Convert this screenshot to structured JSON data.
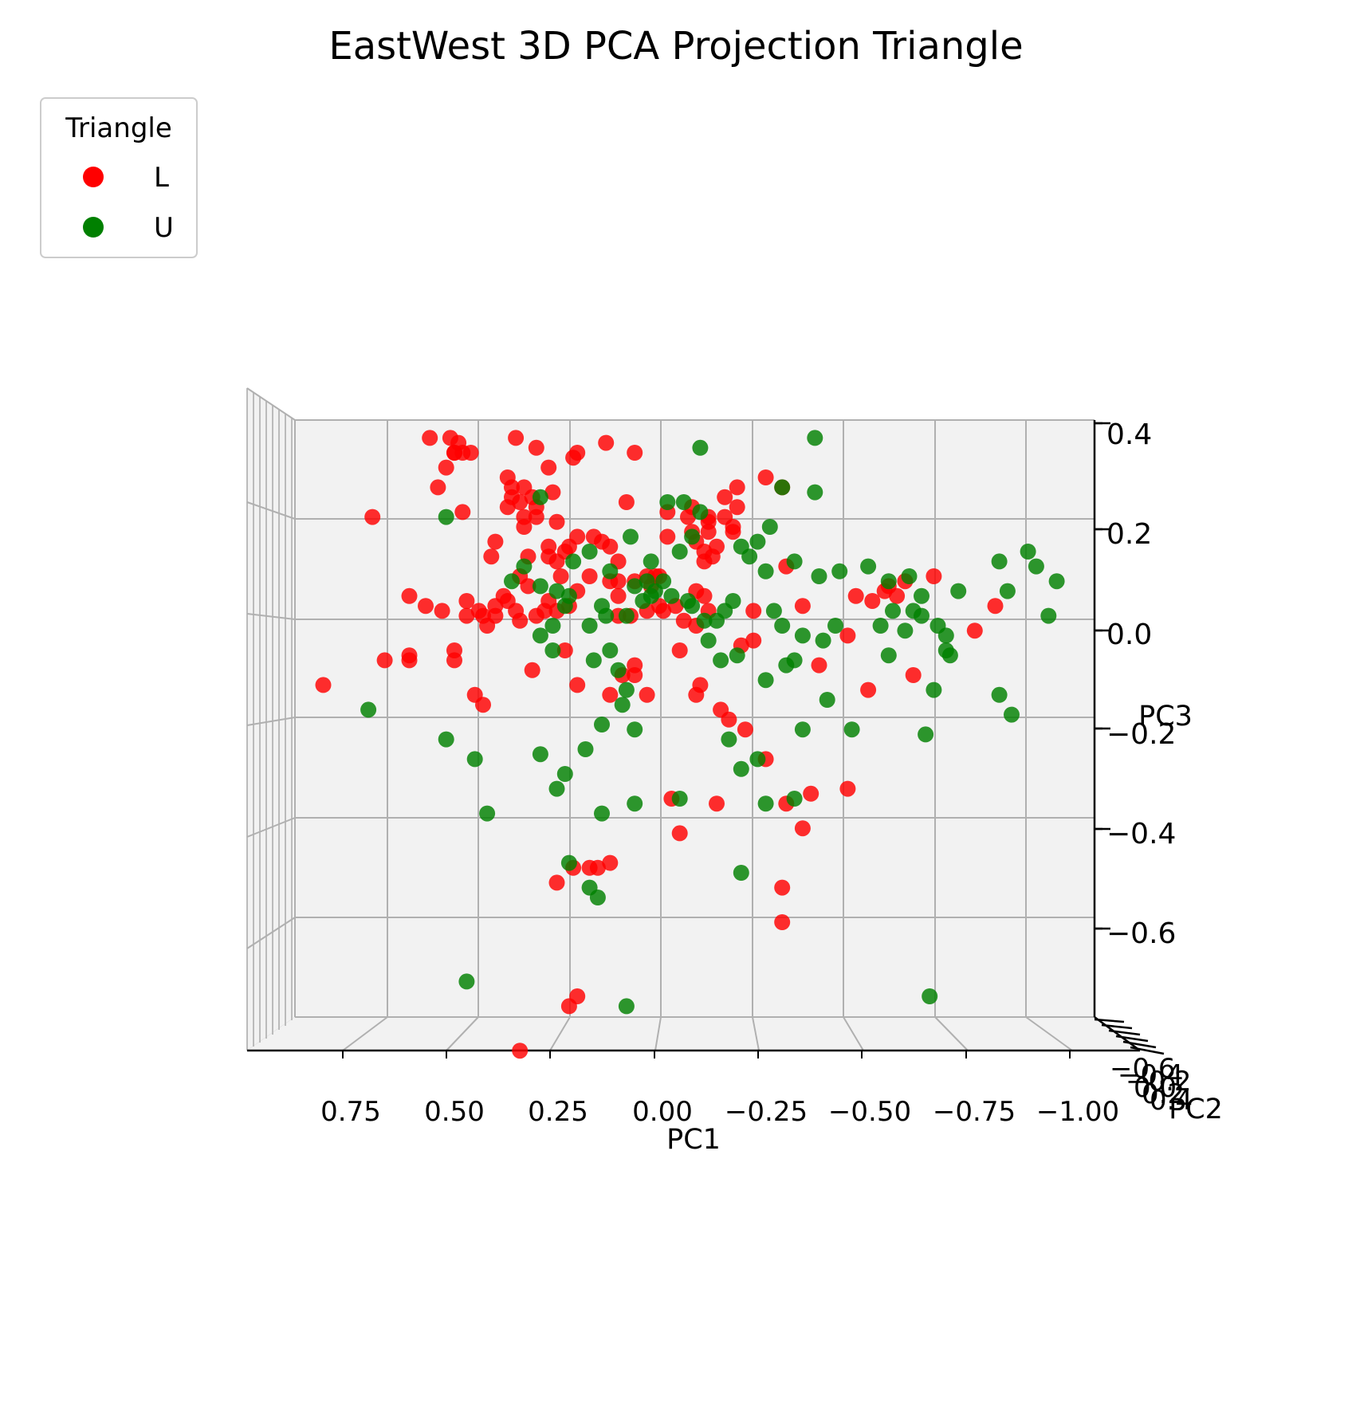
{
  "chart_data": {
    "type": "scatter",
    "projection": "3d",
    "title": "EastWest 3D PCA Projection Triangle",
    "xlabel": "PC1",
    "ylabel": "PC2",
    "zlabel": "PC3",
    "xlim": [
      0.9,
      -1.05
    ],
    "zlim": [
      -0.78,
      0.45
    ],
    "xticks": [
      "0.75",
      "0.50",
      "0.25",
      "0.00",
      "−0.25",
      "−0.50",
      "−0.75",
      "−1.00"
    ],
    "zticks": [
      "0.4",
      "0.2",
      "0.0",
      "−0.2",
      "−0.4",
      "−0.6"
    ],
    "yticks_overlapping": [
      "−0.6",
      "−0.4",
      "−0.2",
      "0.0",
      "0.2",
      "0.4"
    ],
    "grid": true,
    "pane_color": "#f2f2f2",
    "legend": {
      "title": "Triangle",
      "position": "top-left-outside",
      "entries": [
        {
          "label": "L",
          "color": "#ff0000"
        },
        {
          "label": "U",
          "color": "#008000"
        }
      ]
    },
    "series": [
      {
        "name": "L",
        "color": "#ff0000",
        "points": [
          [
            0.56,
            0.38
          ],
          [
            0.51,
            0.38
          ],
          [
            0.49,
            0.37
          ],
          [
            0.5,
            0.35
          ],
          [
            0.5,
            0.35
          ],
          [
            0.52,
            0.32
          ],
          [
            0.48,
            0.35
          ],
          [
            0.46,
            0.35
          ],
          [
            0.35,
            0.38
          ],
          [
            0.3,
            0.36
          ],
          [
            0.13,
            0.37
          ],
          [
            0.06,
            0.35
          ],
          [
            0.2,
            0.35
          ],
          [
            0.21,
            0.34
          ],
          [
            0.54,
            0.28
          ],
          [
            0.27,
            0.32
          ],
          [
            0.37,
            0.3
          ],
          [
            0.36,
            0.28
          ],
          [
            0.33,
            0.28
          ],
          [
            0.7,
            0.22
          ],
          [
            0.48,
            0.23
          ],
          [
            0.36,
            0.26
          ],
          [
            0.37,
            0.24
          ],
          [
            0.34,
            0.25
          ],
          [
            0.31,
            0.26
          ],
          [
            0.33,
            0.22
          ],
          [
            0.3,
            0.24
          ],
          [
            0.3,
            0.22
          ],
          [
            0.33,
            0.2
          ],
          [
            0.26,
            0.27
          ],
          [
            0.25,
            0.21
          ],
          [
            0.08,
            0.25
          ],
          [
            -0.02,
            0.23
          ],
          [
            -0.08,
            0.24
          ],
          [
            -0.12,
            0.22
          ],
          [
            -0.16,
            0.26
          ],
          [
            -0.19,
            0.28
          ],
          [
            -0.26,
            0.3
          ],
          [
            -0.3,
            0.28
          ],
          [
            -0.18,
            0.2
          ],
          [
            -0.19,
            0.24
          ],
          [
            -0.18,
            0.19
          ],
          [
            -0.07,
            0.22
          ],
          [
            -0.12,
            0.21
          ],
          [
            -0.16,
            0.22
          ],
          [
            -0.08,
            0.19
          ],
          [
            -0.12,
            0.19
          ],
          [
            -0.09,
            0.17
          ],
          [
            -0.14,
            0.16
          ],
          [
            -0.11,
            0.13
          ],
          [
            -0.11,
            0.15
          ],
          [
            -0.13,
            0.14
          ],
          [
            -0.02,
            0.18
          ],
          [
            0.4,
            0.17
          ],
          [
            0.41,
            0.14
          ],
          [
            0.32,
            0.14
          ],
          [
            0.27,
            0.16
          ],
          [
            0.27,
            0.14
          ],
          [
            0.25,
            0.13
          ],
          [
            0.23,
            0.15
          ],
          [
            0.22,
            0.16
          ],
          [
            0.2,
            0.18
          ],
          [
            0.16,
            0.18
          ],
          [
            0.14,
            0.17
          ],
          [
            0.12,
            0.16
          ],
          [
            0.1,
            0.13
          ],
          [
            0.1,
            0.09
          ],
          [
            0.1,
            0.06
          ],
          [
            0.06,
            0.09
          ],
          [
            0.12,
            0.09
          ],
          [
            0.03,
            0.1
          ],
          [
            0.01,
            0.1
          ],
          [
            0.0,
            0.1
          ],
          [
            0.02,
            0.08
          ],
          [
            0.34,
            0.1
          ],
          [
            0.32,
            0.08
          ],
          [
            0.27,
            0.05
          ],
          [
            0.2,
            0.07
          ],
          [
            0.24,
            0.1
          ],
          [
            0.17,
            0.1
          ],
          [
            0.37,
            0.05
          ],
          [
            0.28,
            0.03
          ],
          [
            0.3,
            0.02
          ],
          [
            0.34,
            0.01
          ],
          [
            0.4,
            0.02
          ],
          [
            0.43,
            0.02
          ],
          [
            0.44,
            0.03
          ],
          [
            0.47,
            0.02
          ],
          [
            0.42,
            0.0
          ],
          [
            0.61,
            0.06
          ],
          [
            0.57,
            0.04
          ],
          [
            0.53,
            0.03
          ],
          [
            0.47,
            0.05
          ],
          [
            0.38,
            0.06
          ],
          [
            0.4,
            0.04
          ],
          [
            0.35,
            0.03
          ],
          [
            0.25,
            0.03
          ],
          [
            0.22,
            0.04
          ],
          [
            0.1,
            0.02
          ],
          [
            0.07,
            0.02
          ],
          [
            0.03,
            0.03
          ],
          [
            0.0,
            0.04
          ],
          [
            -0.01,
            0.03
          ],
          [
            -0.04,
            0.04
          ],
          [
            -0.06,
            0.01
          ],
          [
            -0.09,
            0.0
          ],
          [
            -0.12,
            0.03
          ],
          [
            -0.09,
            0.07
          ],
          [
            -0.11,
            0.06
          ],
          [
            -0.23,
            0.03
          ],
          [
            -0.35,
            0.04
          ],
          [
            -0.52,
            0.05
          ],
          [
            -0.48,
            0.06
          ],
          [
            -0.56,
            0.08
          ],
          [
            -0.55,
            0.07
          ],
          [
            -0.58,
            0.06
          ],
          [
            -0.77,
            -0.01
          ],
          [
            -0.62,
            -0.1
          ],
          [
            -0.82,
            0.04
          ],
          [
            -0.51,
            -0.13
          ],
          [
            -0.67,
            0.1
          ],
          [
            -0.6,
            0.09
          ],
          [
            -0.31,
            0.12
          ],
          [
            -0.39,
            -0.08
          ],
          [
            -0.46,
            -0.02
          ],
          [
            -0.2,
            -0.04
          ],
          [
            -0.23,
            -0.03
          ],
          [
            -0.1,
            -0.12
          ],
          [
            -0.05,
            -0.05
          ],
          [
            0.23,
            -0.05
          ],
          [
            0.31,
            -0.09
          ],
          [
            0.5,
            -0.05
          ],
          [
            0.5,
            -0.07
          ],
          [
            0.45,
            -0.14
          ],
          [
            0.43,
            -0.16
          ],
          [
            0.61,
            -0.06
          ],
          [
            0.61,
            -0.07
          ],
          [
            0.67,
            -0.07
          ],
          [
            0.82,
            -0.12
          ],
          [
            0.2,
            -0.12
          ],
          [
            0.12,
            -0.14
          ],
          [
            0.03,
            -0.14
          ],
          [
            0.06,
            -0.1
          ],
          [
            0.09,
            -0.1
          ],
          [
            0.06,
            -0.08
          ],
          [
            -0.09,
            -0.14
          ],
          [
            -0.15,
            -0.17
          ],
          [
            -0.17,
            -0.19
          ],
          [
            -0.21,
            -0.21
          ],
          [
            -0.26,
            -0.27
          ],
          [
            -0.46,
            -0.33
          ],
          [
            -0.37,
            -0.34
          ],
          [
            -0.31,
            -0.36
          ],
          [
            -0.35,
            -0.41
          ],
          [
            -0.3,
            -0.53
          ],
          [
            -0.03,
            -0.35
          ],
          [
            -0.05,
            -0.42
          ],
          [
            -0.14,
            -0.36
          ],
          [
            -0.3,
            -0.6
          ],
          [
            0.12,
            -0.48
          ],
          [
            0.15,
            -0.49
          ],
          [
            0.17,
            -0.49
          ],
          [
            0.21,
            -0.49
          ],
          [
            0.25,
            -0.52
          ],
          [
            0.2,
            -0.75
          ],
          [
            0.22,
            -0.77
          ],
          [
            0.34,
            -0.86
          ]
        ]
      },
      {
        "name": "U",
        "color": "#008000",
        "points": [
          [
            -0.38,
            0.38
          ],
          [
            -0.3,
            0.28
          ],
          [
            -0.38,
            0.27
          ],
          [
            -0.06,
            0.25
          ],
          [
            -0.02,
            0.25
          ],
          [
            0.29,
            0.26
          ],
          [
            0.52,
            0.22
          ],
          [
            0.07,
            0.18
          ],
          [
            -0.08,
            0.18
          ],
          [
            -0.2,
            0.16
          ],
          [
            -0.22,
            0.14
          ],
          [
            -0.26,
            0.11
          ],
          [
            -0.33,
            0.13
          ],
          [
            -0.39,
            0.1
          ],
          [
            -0.44,
            0.11
          ],
          [
            -0.56,
            0.09
          ],
          [
            -0.61,
            0.1
          ],
          [
            -0.83,
            0.13
          ],
          [
            -0.9,
            0.15
          ],
          [
            -0.92,
            0.12
          ],
          [
            -0.97,
            0.09
          ],
          [
            -0.85,
            0.07
          ],
          [
            -0.95,
            0.02
          ],
          [
            -0.57,
            0.03
          ],
          [
            -0.62,
            0.03
          ],
          [
            -0.64,
            0.02
          ],
          [
            -0.54,
            0.0
          ],
          [
            -0.6,
            -0.01
          ],
          [
            -0.7,
            -0.02
          ],
          [
            -0.7,
            -0.05
          ],
          [
            -0.71,
            -0.06
          ],
          [
            -0.56,
            -0.06
          ],
          [
            -0.4,
            -0.03
          ],
          [
            -0.43,
            0.0
          ],
          [
            -0.3,
            0.0
          ],
          [
            -0.35,
            -0.02
          ],
          [
            -0.28,
            0.03
          ],
          [
            -0.16,
            0.03
          ],
          [
            -0.14,
            0.01
          ],
          [
            0.01,
            0.07
          ],
          [
            0.03,
            0.09
          ],
          [
            0.06,
            0.08
          ],
          [
            0.12,
            0.11
          ],
          [
            0.17,
            0.15
          ],
          [
            0.21,
            0.13
          ],
          [
            0.33,
            0.12
          ],
          [
            0.36,
            0.09
          ],
          [
            0.29,
            0.08
          ],
          [
            0.25,
            0.07
          ],
          [
            0.22,
            0.06
          ],
          [
            0.23,
            0.04
          ],
          [
            0.14,
            0.04
          ],
          [
            0.13,
            0.02
          ],
          [
            0.17,
            0.0
          ],
          [
            0.08,
            0.02
          ],
          [
            0.04,
            0.05
          ],
          [
            0.02,
            0.06
          ],
          [
            -0.01,
            0.09
          ],
          [
            -0.03,
            0.06
          ],
          [
            -0.07,
            0.05
          ],
          [
            -0.08,
            0.04
          ],
          [
            -0.11,
            0.01
          ],
          [
            -0.12,
            -0.03
          ],
          [
            -0.15,
            -0.07
          ],
          [
            -0.19,
            -0.06
          ],
          [
            -0.26,
            -0.11
          ],
          [
            -0.31,
            -0.08
          ],
          [
            -0.33,
            -0.07
          ],
          [
            -0.41,
            -0.15
          ],
          [
            -0.47,
            -0.21
          ],
          [
            -0.65,
            -0.22
          ],
          [
            -0.67,
            -0.13
          ],
          [
            -0.83,
            -0.14
          ],
          [
            -0.86,
            -0.18
          ],
          [
            -0.35,
            -0.21
          ],
          [
            -0.17,
            -0.23
          ],
          [
            -0.24,
            -0.27
          ],
          [
            -0.2,
            -0.29
          ],
          [
            -0.26,
            -0.36
          ],
          [
            -0.33,
            -0.35
          ],
          [
            0.29,
            -0.02
          ],
          [
            0.26,
            0.0
          ],
          [
            0.26,
            -0.05
          ],
          [
            0.16,
            -0.07
          ],
          [
            0.12,
            -0.05
          ],
          [
            0.1,
            -0.09
          ],
          [
            0.08,
            -0.13
          ],
          [
            0.09,
            -0.16
          ],
          [
            0.06,
            -0.21
          ],
          [
            0.14,
            -0.2
          ],
          [
            0.18,
            -0.25
          ],
          [
            0.29,
            -0.26
          ],
          [
            0.23,
            -0.3
          ],
          [
            0.45,
            -0.27
          ],
          [
            0.52,
            -0.23
          ],
          [
            0.71,
            -0.17
          ],
          [
            0.25,
            -0.33
          ],
          [
            0.42,
            -0.38
          ],
          [
            0.06,
            -0.36
          ],
          [
            0.14,
            -0.38
          ],
          [
            -0.05,
            -0.35
          ],
          [
            0.17,
            -0.53
          ],
          [
            0.15,
            -0.55
          ],
          [
            -0.2,
            -0.5
          ],
          [
            0.22,
            -0.48
          ],
          [
            0.47,
            -0.72
          ],
          [
            0.08,
            -0.77
          ],
          [
            -0.66,
            -0.75
          ],
          [
            -0.1,
            0.36
          ],
          [
            -0.1,
            0.23
          ],
          [
            0.02,
            0.13
          ],
          [
            -0.05,
            0.15
          ],
          [
            -0.24,
            0.17
          ],
          [
            -0.27,
            0.2
          ],
          [
            -0.18,
            0.05
          ],
          [
            -0.51,
            0.12
          ],
          [
            -0.64,
            0.06
          ],
          [
            -0.73,
            0.07
          ],
          [
            -0.68,
            0.0
          ]
        ]
      }
    ]
  }
}
